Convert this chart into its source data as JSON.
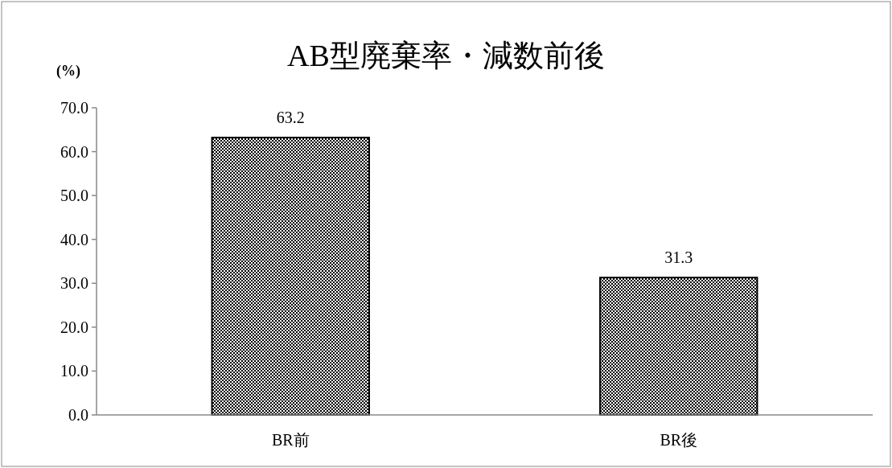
{
  "chart_data": {
    "type": "bar",
    "title": "AB型廃棄率・減数前後",
    "ylabel": "(%)",
    "categories": [
      "BR前",
      "BR後"
    ],
    "values": [
      63.2,
      31.3
    ],
    "color": "#000000",
    "ylim": [
      0,
      70
    ],
    "yticks": [
      {
        "value": 0,
        "label": "0.0"
      },
      {
        "value": 10,
        "label": "10.0"
      },
      {
        "value": 20,
        "label": "20.0"
      },
      {
        "value": 30,
        "label": "30.0"
      },
      {
        "value": 40,
        "label": "40.0"
      },
      {
        "value": 50,
        "label": "50.0"
      },
      {
        "value": 60,
        "label": "60.0"
      },
      {
        "value": 70,
        "label": "70.0"
      }
    ],
    "data_labels": true,
    "grid": false
  }
}
